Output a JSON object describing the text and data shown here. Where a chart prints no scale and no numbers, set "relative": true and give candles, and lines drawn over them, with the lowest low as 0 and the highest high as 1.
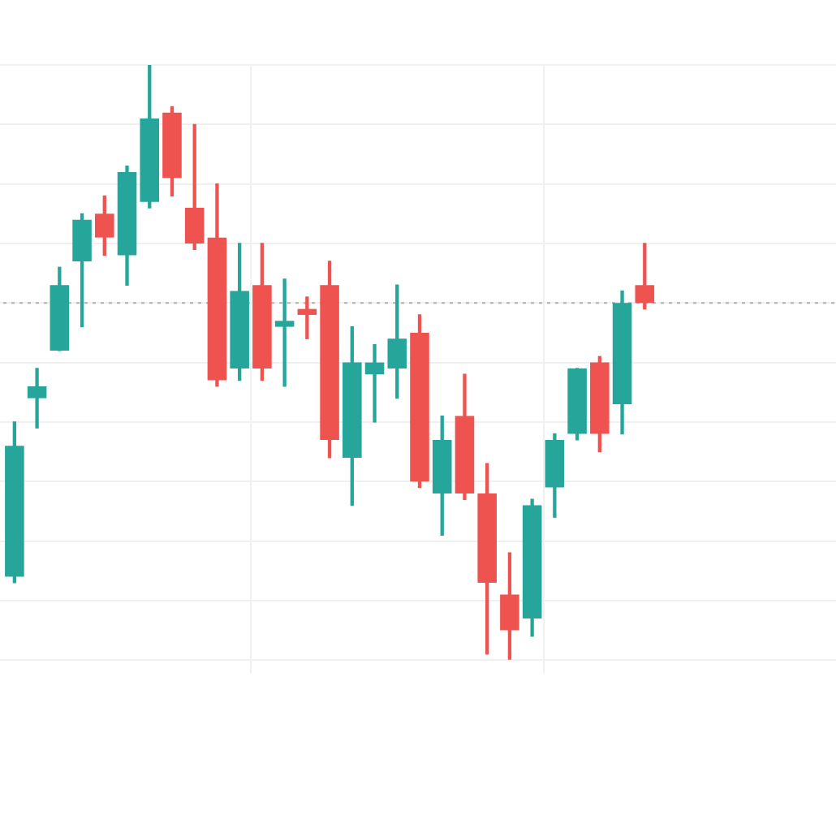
{
  "chart_data": {
    "type": "candlestick",
    "relative": true,
    "grid": true,
    "categories": [
      null,
      null,
      null,
      null,
      null,
      null,
      null,
      null,
      null,
      null,
      null,
      null,
      null,
      null,
      null,
      null,
      null,
      null,
      null,
      null,
      null,
      null,
      null,
      null,
      null,
      null,
      null,
      null,
      null,
      null,
      null,
      null,
      null,
      null,
      null,
      null,
      null
    ],
    "ohlc": [
      [
        0.14,
        0.4,
        0.13,
        0.36
      ],
      [
        0.44,
        0.49,
        0.39,
        0.46
      ],
      [
        0.52,
        0.66,
        0.52,
        0.63
      ],
      [
        0.67,
        0.75,
        0.56,
        0.74
      ],
      [
        0.75,
        0.78,
        0.68,
        0.71
      ],
      [
        0.68,
        0.83,
        0.63,
        0.82
      ],
      [
        0.77,
        1,
        0.76,
        0.91
      ],
      [
        0.92,
        0.93,
        0.78,
        0.81
      ],
      [
        0.76,
        0.9,
        0.69,
        0.7
      ],
      [
        0.71,
        0.8,
        0.46,
        0.47
      ],
      [
        0.49,
        0.7,
        0.47,
        0.62
      ],
      [
        0.63,
        0.7,
        0.47,
        0.49
      ],
      [
        0.56,
        0.64,
        0.46,
        0.57
      ],
      [
        0.59,
        0.61,
        0.54,
        0.58
      ],
      [
        0.63,
        0.67,
        0.34,
        0.37
      ],
      [
        0.34,
        0.56,
        0.26,
        0.5
      ],
      [
        0.48,
        0.53,
        0.4,
        0.5
      ],
      [
        0.49,
        0.63,
        0.44,
        0.54
      ],
      [
        0.55,
        0.58,
        0.29,
        0.3
      ],
      [
        0.28,
        0.41,
        0.21,
        0.37
      ],
      [
        0.41,
        0.48,
        0.27,
        0.28
      ],
      [
        0.28,
        0.33,
        0.01,
        0.13
      ],
      [
        0.11,
        0.18,
        0,
        0.05
      ],
      [
        0.07,
        0.27,
        0.04,
        0.26
      ],
      [
        0.29,
        0.38,
        0.24,
        0.37
      ],
      [
        0.38,
        0.49,
        0.37,
        0.49
      ],
      [
        0.5,
        0.51,
        0.35,
        0.38
      ],
      [
        0.43,
        0.62,
        0.38,
        0.6
      ],
      [
        0.63,
        0.7,
        0.59,
        0.6
      ],
      null,
      null,
      null,
      null,
      null,
      null,
      null,
      null
    ],
    "colors": [
      "#26a69a",
      "#26a69a",
      "#26a69a",
      "#26a69a",
      "#ef5350",
      "#26a69a",
      "#26a69a",
      "#ef5350",
      "#ef5350",
      "#ef5350",
      "#26a69a",
      "#ef5350",
      "#26a69a",
      "#ef5350",
      "#ef5350",
      "#26a69a",
      "#26a69a",
      "#26a69a",
      "#ef5350",
      "#26a69a",
      "#ef5350",
      "#ef5350",
      "#ef5350",
      "#26a69a",
      "#26a69a",
      "#26a69a",
      "#ef5350",
      "#26a69a",
      "#ef5350",
      null,
      null,
      null,
      null,
      null,
      null,
      null,
      null
    ],
    "ref_lines": [
      {
        "axis": "y",
        "value": 0.6,
        "color": "#b0b0b0",
        "line_style": "dotted"
      }
    ]
  }
}
